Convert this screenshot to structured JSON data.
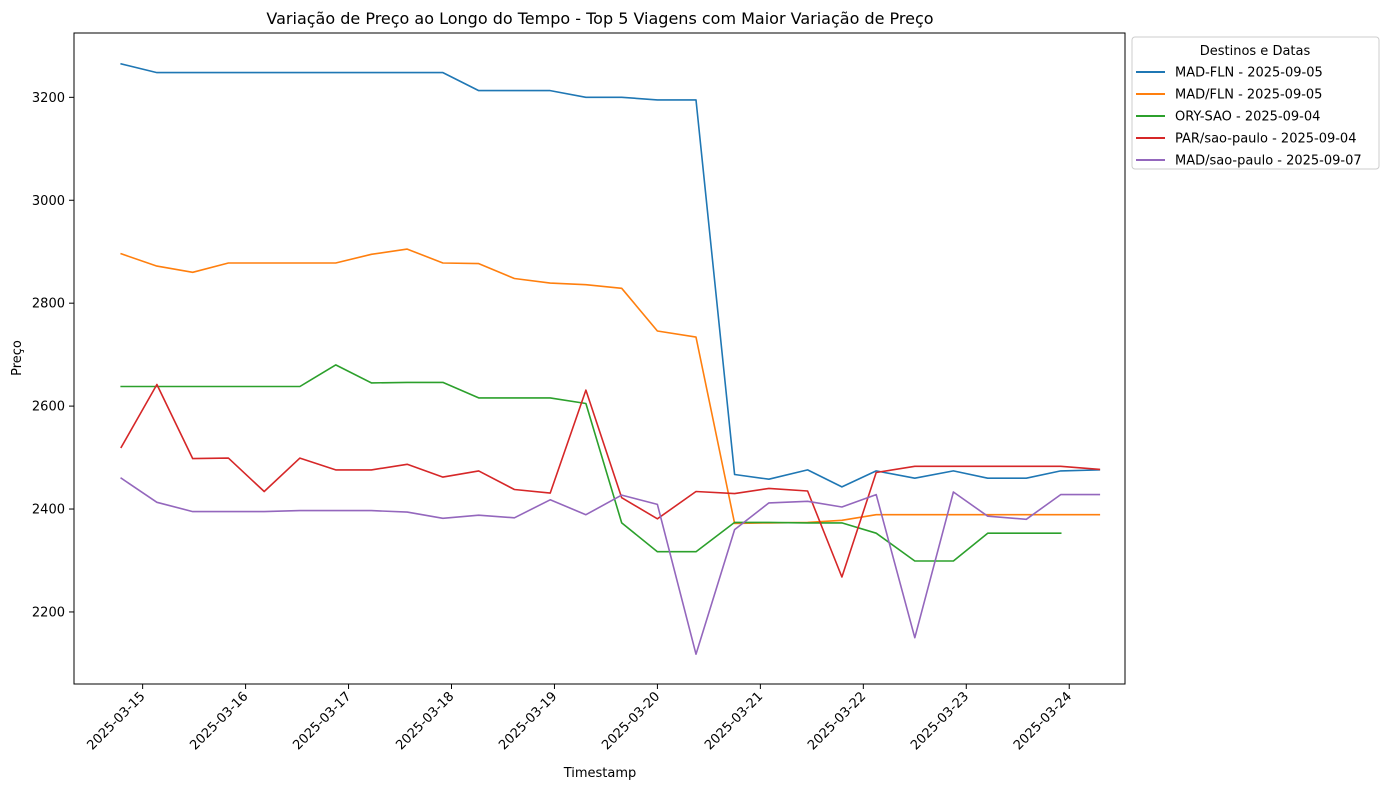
{
  "chart_data": {
    "type": "line",
    "title": "Variação de Preço ao Longo do Tempo - Top 5 Viagens com Maior Variação de Preço",
    "xlabel": "Timestamp",
    "ylabel": "Preço",
    "xlim": [
      "2025-03-14 08:00",
      "2025-03-24 13:00"
    ],
    "ylim": [
      2060,
      3325
    ],
    "x_ticks": [
      "2025-03-15",
      "2025-03-16",
      "2025-03-17",
      "2025-03-18",
      "2025-03-19",
      "2025-03-20",
      "2025-03-21",
      "2025-03-22",
      "2025-03-23",
      "2025-03-24"
    ],
    "y_ticks": [
      2200,
      2400,
      2600,
      2800,
      3000,
      3200
    ],
    "legend": {
      "title": "Destinos e Datas",
      "placement": "outside-top-right"
    },
    "grid": false,
    "series": [
      {
        "name": "MAD-FLN - 2025-09-05",
        "color": "#1f77b4",
        "points": [
          [
            "2025-03-14 19:00",
            3265
          ],
          [
            "2025-03-15 03:20",
            3248
          ],
          [
            "2025-03-15 11:40",
            3248
          ],
          [
            "2025-03-15 20:00",
            3248
          ],
          [
            "2025-03-16 04:20",
            3248
          ],
          [
            "2025-03-16 12:40",
            3248
          ],
          [
            "2025-03-16 21:00",
            3248
          ],
          [
            "2025-03-17 05:20",
            3248
          ],
          [
            "2025-03-17 13:40",
            3248
          ],
          [
            "2025-03-17 22:00",
            3248
          ],
          [
            "2025-03-18 06:20",
            3213
          ],
          [
            "2025-03-18 14:40",
            3213
          ],
          [
            "2025-03-18 23:00",
            3213
          ],
          [
            "2025-03-19 07:20",
            3200
          ],
          [
            "2025-03-19 15:40",
            3200
          ],
          [
            "2025-03-20 00:00",
            3195
          ],
          [
            "2025-03-20 09:00",
            3195
          ],
          [
            "2025-03-20 18:00",
            2467
          ],
          [
            "2025-03-21 02:00",
            2458
          ],
          [
            "2025-03-21 11:00",
            2476
          ],
          [
            "2025-03-21 19:00",
            2443
          ],
          [
            "2025-03-22 03:00",
            2474
          ],
          [
            "2025-03-22 12:00",
            2460
          ],
          [
            "2025-03-22 21:00",
            2474
          ],
          [
            "2025-03-23 05:00",
            2460
          ],
          [
            "2025-03-23 14:00",
            2460
          ],
          [
            "2025-03-23 22:00",
            2474
          ],
          [
            "2025-03-24 07:00",
            2476
          ]
        ]
      },
      {
        "name": "MAD/FLN - 2025-09-05",
        "color": "#ff7f0e",
        "points": [
          [
            "2025-03-14 19:00",
            2896
          ],
          [
            "2025-03-15 03:20",
            2872
          ],
          [
            "2025-03-15 11:40",
            2860
          ],
          [
            "2025-03-15 20:00",
            2878
          ],
          [
            "2025-03-16 04:20",
            2878
          ],
          [
            "2025-03-16 12:40",
            2878
          ],
          [
            "2025-03-16 21:00",
            2878
          ],
          [
            "2025-03-17 05:20",
            2895
          ],
          [
            "2025-03-17 13:40",
            2905
          ],
          [
            "2025-03-17 22:00",
            2878
          ],
          [
            "2025-03-18 06:20",
            2877
          ],
          [
            "2025-03-18 14:40",
            2848
          ],
          [
            "2025-03-18 23:00",
            2839
          ],
          [
            "2025-03-19 07:20",
            2836
          ],
          [
            "2025-03-19 15:40",
            2829
          ],
          [
            "2025-03-20 00:00",
            2746
          ],
          [
            "2025-03-20 09:00",
            2734
          ],
          [
            "2025-03-20 18:00",
            2372
          ],
          [
            "2025-03-21 02:00",
            2373
          ],
          [
            "2025-03-21 11:00",
            2374
          ],
          [
            "2025-03-21 19:00",
            2378
          ],
          [
            "2025-03-22 03:00",
            2389
          ],
          [
            "2025-03-22 12:00",
            2389
          ],
          [
            "2025-03-22 21:00",
            2389
          ],
          [
            "2025-03-23 05:00",
            2389
          ],
          [
            "2025-03-23 14:00",
            2389
          ],
          [
            "2025-03-23 22:00",
            2389
          ],
          [
            "2025-03-24 07:00",
            2389
          ]
        ]
      },
      {
        "name": "ORY-SAO - 2025-09-04",
        "color": "#2ca02c",
        "points": [
          [
            "2025-03-14 19:00",
            2638
          ],
          [
            "2025-03-15 03:20",
            2638
          ],
          [
            "2025-03-15 11:40",
            2638
          ],
          [
            "2025-03-15 20:00",
            2638
          ],
          [
            "2025-03-16 04:20",
            2638
          ],
          [
            "2025-03-16 12:40",
            2638
          ],
          [
            "2025-03-16 21:00",
            2680
          ],
          [
            "2025-03-17 05:20",
            2645
          ],
          [
            "2025-03-17 13:40",
            2646
          ],
          [
            "2025-03-17 22:00",
            2646
          ],
          [
            "2025-03-18 06:20",
            2616
          ],
          [
            "2025-03-18 14:40",
            2616
          ],
          [
            "2025-03-18 23:00",
            2616
          ],
          [
            "2025-03-19 07:20",
            2605
          ],
          [
            "2025-03-19 15:40",
            2373
          ],
          [
            "2025-03-20 00:00",
            2317
          ],
          [
            "2025-03-20 09:00",
            2317
          ],
          [
            "2025-03-20 18:00",
            2374
          ],
          [
            "2025-03-21 02:00",
            2374
          ],
          [
            "2025-03-21 11:00",
            2373
          ],
          [
            "2025-03-21 19:00",
            2373
          ],
          [
            "2025-03-22 03:00",
            2353
          ],
          [
            "2025-03-22 12:00",
            2299
          ],
          [
            "2025-03-22 21:00",
            2299
          ],
          [
            "2025-03-23 05:00",
            2353
          ],
          [
            "2025-03-23 14:00",
            2353
          ],
          [
            "2025-03-23 22:00",
            2353
          ]
        ]
      },
      {
        "name": "PAR/sao-paulo - 2025-09-04",
        "color": "#d62728",
        "points": [
          [
            "2025-03-14 19:00",
            2520
          ],
          [
            "2025-03-15 03:20",
            2642
          ],
          [
            "2025-03-15 11:40",
            2498
          ],
          [
            "2025-03-15 20:00",
            2499
          ],
          [
            "2025-03-16 04:20",
            2434
          ],
          [
            "2025-03-16 12:40",
            2499
          ],
          [
            "2025-03-16 21:00",
            2476
          ],
          [
            "2025-03-17 05:20",
            2476
          ],
          [
            "2025-03-17 13:40",
            2487
          ],
          [
            "2025-03-17 22:00",
            2462
          ],
          [
            "2025-03-18 06:20",
            2474
          ],
          [
            "2025-03-18 14:40",
            2438
          ],
          [
            "2025-03-18 23:00",
            2431
          ],
          [
            "2025-03-19 07:20",
            2631
          ],
          [
            "2025-03-19 15:40",
            2422
          ],
          [
            "2025-03-20 00:00",
            2381
          ],
          [
            "2025-03-20 09:00",
            2434
          ],
          [
            "2025-03-20 18:00",
            2430
          ],
          [
            "2025-03-21 02:00",
            2440
          ],
          [
            "2025-03-21 11:00",
            2435
          ],
          [
            "2025-03-21 19:00",
            2268
          ],
          [
            "2025-03-22 03:00",
            2471
          ],
          [
            "2025-03-22 12:00",
            2483
          ],
          [
            "2025-03-22 21:00",
            2483
          ],
          [
            "2025-03-23 05:00",
            2483
          ],
          [
            "2025-03-23 14:00",
            2483
          ],
          [
            "2025-03-23 22:00",
            2483
          ],
          [
            "2025-03-24 07:00",
            2477
          ]
        ]
      },
      {
        "name": "MAD/sao-paulo - 2025-09-07",
        "color": "#9467bd",
        "points": [
          [
            "2025-03-14 19:00",
            2460
          ],
          [
            "2025-03-15 03:20",
            2413
          ],
          [
            "2025-03-15 11:40",
            2395
          ],
          [
            "2025-03-15 20:00",
            2395
          ],
          [
            "2025-03-16 04:20",
            2395
          ],
          [
            "2025-03-16 12:40",
            2397
          ],
          [
            "2025-03-16 21:00",
            2397
          ],
          [
            "2025-03-17 05:20",
            2397
          ],
          [
            "2025-03-17 13:40",
            2394
          ],
          [
            "2025-03-17 22:00",
            2382
          ],
          [
            "2025-03-18 06:20",
            2388
          ],
          [
            "2025-03-18 14:40",
            2383
          ],
          [
            "2025-03-18 23:00",
            2418
          ],
          [
            "2025-03-19 07:20",
            2389
          ],
          [
            "2025-03-19 15:40",
            2427
          ],
          [
            "2025-03-20 00:00",
            2409
          ],
          [
            "2025-03-20 09:00",
            2118
          ],
          [
            "2025-03-20 18:00",
            2360
          ],
          [
            "2025-03-21 02:00",
            2412
          ],
          [
            "2025-03-21 11:00",
            2415
          ],
          [
            "2025-03-21 19:00",
            2404
          ],
          [
            "2025-03-22 03:00",
            2428
          ],
          [
            "2025-03-22 12:00",
            2150
          ],
          [
            "2025-03-22 21:00",
            2433
          ],
          [
            "2025-03-23 05:00",
            2386
          ],
          [
            "2025-03-23 14:00",
            2380
          ],
          [
            "2025-03-23 22:00",
            2428
          ],
          [
            "2025-03-24 07:00",
            2428
          ]
        ]
      }
    ]
  }
}
